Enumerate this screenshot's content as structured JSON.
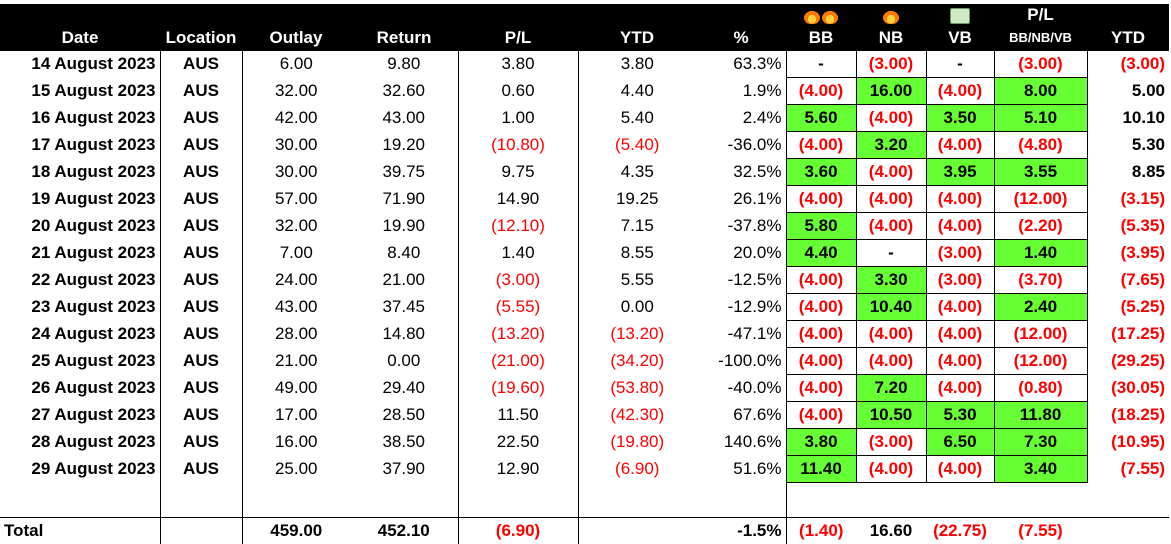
{
  "headers": {
    "date": "Date",
    "location": "Location",
    "outlay": "Outlay",
    "return": "Return",
    "pl": "P/L",
    "ytd": "YTD",
    "pct": "%",
    "bb": "BB",
    "nb": "NB",
    "vb": "VB",
    "pl_combo_top": "P/L",
    "pl_combo_bottom": "BB/NB/VB",
    "ytd2": "YTD",
    "icons": {
      "bb": [
        "fire-icon",
        "fire-icon"
      ],
      "nb": [
        "fire-icon"
      ],
      "vb": [
        "money-icon"
      ]
    }
  },
  "rows": [
    {
      "date": "14 August 2023",
      "location": "AUS",
      "outlay": "6.00",
      "ret": "9.80",
      "pl": "3.80",
      "ytd": "3.80",
      "pct": "63.3%",
      "bb": "-",
      "nb": "(3.00)",
      "vb": "-",
      "plc": "(3.00)",
      "ytd2": "(3.00)"
    },
    {
      "date": "15 August 2023",
      "location": "AUS",
      "outlay": "32.00",
      "ret": "32.60",
      "pl": "0.60",
      "ytd": "4.40",
      "pct": "1.9%",
      "bb": "(4.00)",
      "nb": "16.00",
      "vb": "(4.00)",
      "plc": "8.00",
      "ytd2": "5.00"
    },
    {
      "date": "16 August 2023",
      "location": "AUS",
      "outlay": "42.00",
      "ret": "43.00",
      "pl": "1.00",
      "ytd": "5.40",
      "pct": "2.4%",
      "bb": "5.60",
      "nb": "(4.00)",
      "vb": "3.50",
      "plc": "5.10",
      "ytd2": "10.10"
    },
    {
      "date": "17 August 2023",
      "location": "AUS",
      "outlay": "30.00",
      "ret": "19.20",
      "pl": "(10.80)",
      "ytd": "(5.40)",
      "pct": "-36.0%",
      "bb": "(4.00)",
      "nb": "3.20",
      "vb": "(4.00)",
      "plc": "(4.80)",
      "ytd2": "5.30"
    },
    {
      "date": "18 August 2023",
      "location": "AUS",
      "outlay": "30.00",
      "ret": "39.75",
      "pl": "9.75",
      "ytd": "4.35",
      "pct": "32.5%",
      "bb": "3.60",
      "nb": "(4.00)",
      "vb": "3.95",
      "plc": "3.55",
      "ytd2": "8.85"
    },
    {
      "date": "19 August 2023",
      "location": "AUS",
      "outlay": "57.00",
      "ret": "71.90",
      "pl": "14.90",
      "ytd": "19.25",
      "pct": "26.1%",
      "bb": "(4.00)",
      "nb": "(4.00)",
      "vb": "(4.00)",
      "plc": "(12.00)",
      "ytd2": "(3.15)"
    },
    {
      "date": "20 August 2023",
      "location": "AUS",
      "outlay": "32.00",
      "ret": "19.90",
      "pl": "(12.10)",
      "ytd": "7.15",
      "pct": "-37.8%",
      "bb": "5.80",
      "nb": "(4.00)",
      "vb": "(4.00)",
      "plc": "(2.20)",
      "ytd2": "(5.35)"
    },
    {
      "date": "21 August 2023",
      "location": "AUS",
      "outlay": "7.00",
      "ret": "8.40",
      "pl": "1.40",
      "ytd": "8.55",
      "pct": "20.0%",
      "bb": "4.40",
      "nb": "-",
      "vb": "(3.00)",
      "plc": "1.40",
      "ytd2": "(3.95)"
    },
    {
      "date": "22 August 2023",
      "location": "AUS",
      "outlay": "24.00",
      "ret": "21.00",
      "pl": "(3.00)",
      "ytd": "5.55",
      "pct": "-12.5%",
      "bb": "(4.00)",
      "nb": "3.30",
      "vb": "(3.00)",
      "plc": "(3.70)",
      "ytd2": "(7.65)"
    },
    {
      "date": "23 August 2023",
      "location": "AUS",
      "outlay": "43.00",
      "ret": "37.45",
      "pl": "(5.55)",
      "ytd": "0.00",
      "pct": "-12.9%",
      "bb": "(4.00)",
      "nb": "10.40",
      "vb": "(4.00)",
      "plc": "2.40",
      "ytd2": "(5.25)"
    },
    {
      "date": "24 August 2023",
      "location": "AUS",
      "outlay": "28.00",
      "ret": "14.80",
      "pl": "(13.20)",
      "ytd": "(13.20)",
      "pct": "-47.1%",
      "bb": "(4.00)",
      "nb": "(4.00)",
      "vb": "(4.00)",
      "plc": "(12.00)",
      "ytd2": "(17.25)"
    },
    {
      "date": "25 August 2023",
      "location": "AUS",
      "outlay": "21.00",
      "ret": "0.00",
      "pl": "(21.00)",
      "ytd": "(34.20)",
      "pct": "-100.0%",
      "bb": "(4.00)",
      "nb": "(4.00)",
      "vb": "(4.00)",
      "plc": "(12.00)",
      "ytd2": "(29.25)"
    },
    {
      "date": "26 August 2023",
      "location": "AUS",
      "outlay": "49.00",
      "ret": "29.40",
      "pl": "(19.60)",
      "ytd": "(53.80)",
      "pct": "-40.0%",
      "bb": "(4.00)",
      "nb": "7.20",
      "vb": "(4.00)",
      "plc": "(0.80)",
      "ytd2": "(30.05)"
    },
    {
      "date": "27 August 2023",
      "location": "AUS",
      "outlay": "17.00",
      "ret": "28.50",
      "pl": "11.50",
      "ytd": "(42.30)",
      "pct": "67.6%",
      "bb": "(4.00)",
      "nb": "10.50",
      "vb": "5.30",
      "plc": "11.80",
      "ytd2": "(18.25)"
    },
    {
      "date": "28 August 2023",
      "location": "AUS",
      "outlay": "16.00",
      "ret": "38.50",
      "pl": "22.50",
      "ytd": "(19.80)",
      "pct": "140.6%",
      "bb": "3.80",
      "nb": "(3.00)",
      "vb": "6.50",
      "plc": "7.30",
      "ytd2": "(10.95)"
    },
    {
      "date": "29 August 2023",
      "location": "AUS",
      "outlay": "25.00",
      "ret": "37.90",
      "pl": "12.90",
      "ytd": "(6.90)",
      "pct": "51.6%",
      "bb": "11.40",
      "nb": "(4.00)",
      "vb": "(4.00)",
      "plc": "3.40",
      "ytd2": "(7.55)"
    }
  ],
  "total": {
    "label": "Total",
    "location": "",
    "outlay": "459.00",
    "ret": "452.10",
    "pl": "(6.90)",
    "ytd": "",
    "pct": "-1.5%",
    "bb": "(1.40)",
    "nb": "16.60",
    "vb": "(22.75)",
    "plc": "(7.55)",
    "ytd2": ""
  },
  "colors": {
    "negative": "#ff0000",
    "positive_fill": "#66ff33",
    "header_bg": "#000000"
  }
}
